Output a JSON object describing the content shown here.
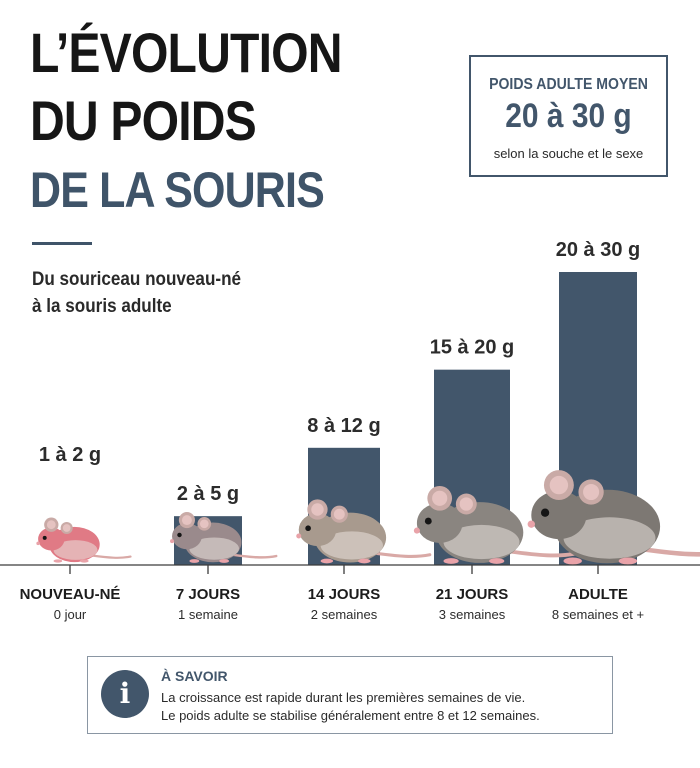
{
  "title": {
    "line1": "L’ÉVOLUTION",
    "line2": "DU POIDS",
    "line3": "DE LA SOURIS"
  },
  "subtitle": {
    "line1": "Du souriceau nouveau-né",
    "line2": "à la souris adulte"
  },
  "info_box": {
    "title": "POIDS ADULTE MOYEN",
    "value": "20 à 30 g",
    "note": "selon la souche et le sexe"
  },
  "chart_data": {
    "type": "bar",
    "unit": "g",
    "categories": [
      "NOUVEAU-NÉ",
      "7 JOURS",
      "14 JOURS",
      "21 JOURS",
      "ADULTE"
    ],
    "sublabels": [
      "0 jour",
      "1 semaine",
      "2 semaines",
      "3 semaines",
      "8 semaines et +"
    ],
    "value_labels": [
      "1 à 2 g",
      "2 à 5 g",
      "8 à 12 g",
      "15 à 20 g",
      "20 à 30 g"
    ],
    "ranges": [
      [
        1,
        2
      ],
      [
        2,
        5
      ],
      [
        8,
        12
      ],
      [
        15,
        20
      ],
      [
        20,
        30
      ]
    ],
    "values": [
      1.5,
      5,
      12,
      20,
      30
    ],
    "bar_shown": [
      false,
      true,
      true,
      true,
      true
    ],
    "ylim": [
      0,
      30
    ],
    "bar_color": "#42566b",
    "mouse_colors": [
      "#e07a85",
      "#9a8a8c",
      "#a89a8e",
      "#8a8580",
      "#7d7873"
    ],
    "grid": false,
    "legend": "none"
  },
  "fact_box": {
    "icon": "info-icon",
    "title": "À SAVOIR",
    "line1": "La croissance est rapide durant les premières semaines de vie.",
    "line2": "Le poids adulte se stabilise généralement entre 8 et 12 semaines."
  },
  "colors": {
    "accent": "#42566b",
    "title": "#161616",
    "title_accent": "#3f5469"
  }
}
